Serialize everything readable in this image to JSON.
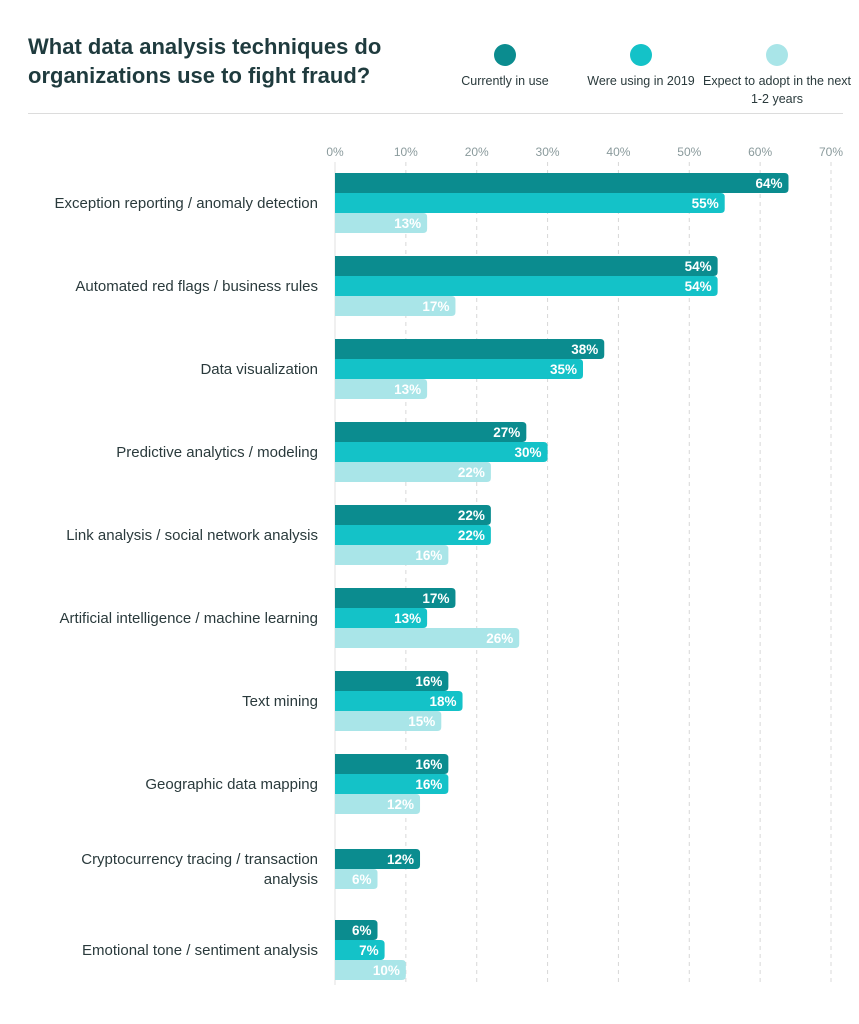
{
  "chart_data": {
    "type": "bar",
    "orientation": "horizontal",
    "title": "What data analysis techniques do organizations use to fight fraud?",
    "xlim": [
      0,
      70
    ],
    "xticks": [
      "0%",
      "10%",
      "20%",
      "30%",
      "40%",
      "50%",
      "60%",
      "70%"
    ],
    "grid": true,
    "legend_placement": "top-right",
    "categories": [
      [
        "Exception reporting / anomaly detection"
      ],
      [
        "Automated red flags / business rules"
      ],
      [
        "Data visualization"
      ],
      [
        "Predictive analytics / modeling"
      ],
      [
        "Link analysis / social network analysis"
      ],
      [
        "Artificial intelligence / machine learning"
      ],
      [
        "Text mining"
      ],
      [
        "Geographic data mapping"
      ],
      [
        "Cryptocurrency tracing / transaction",
        "analysis"
      ],
      [
        "Emotional tone / sentiment analysis"
      ]
    ],
    "series": [
      {
        "name": "Currently in use",
        "color": "#0b8c8f",
        "values": [
          64,
          54,
          38,
          27,
          22,
          17,
          16,
          16,
          12,
          6
        ]
      },
      {
        "name": "Were using in 2019",
        "color": "#14c2c8",
        "values": [
          55,
          54,
          35,
          30,
          22,
          13,
          18,
          16,
          null,
          7
        ]
      },
      {
        "name": "Expect to adopt in the next 1-2 years",
        "color": "#a9e5e8",
        "values": [
          13,
          17,
          13,
          22,
          16,
          26,
          15,
          12,
          6,
          10
        ]
      }
    ]
  }
}
